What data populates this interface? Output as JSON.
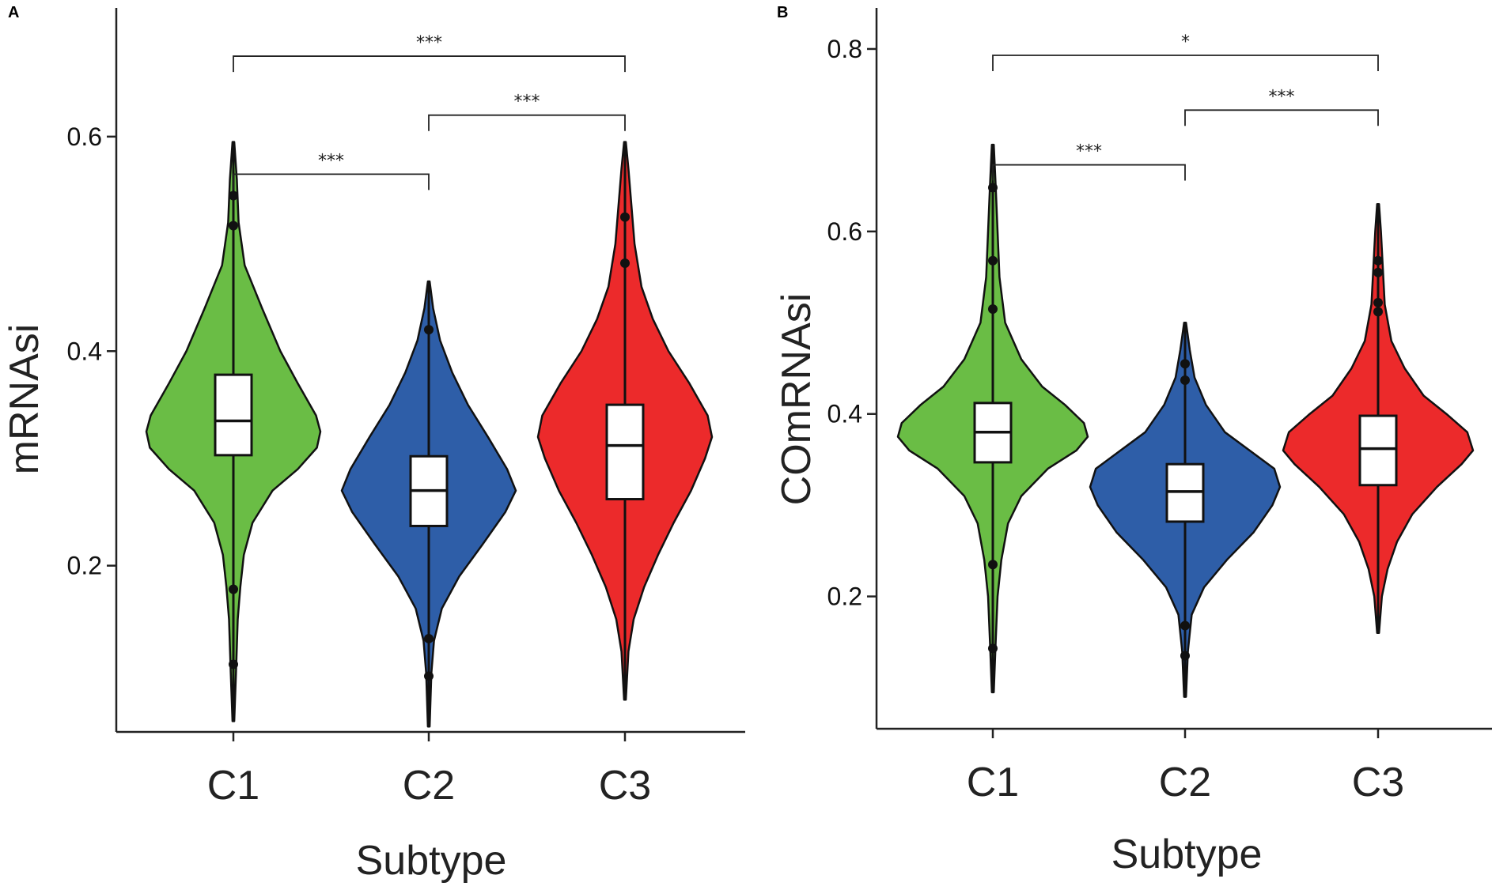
{
  "colors": {
    "C1": "#6abd45",
    "C2": "#2e5ea8",
    "C3": "#ec2a2b",
    "box_fill": "#ffffff",
    "outline": "#111111"
  },
  "chart_data": [
    {
      "panel": "A",
      "type": "violin",
      "xlabel": "Subtype",
      "ylabel": "mRNAsi",
      "categories": [
        "C1",
        "C2",
        "C3"
      ],
      "ylim": [
        0.045,
        0.72
      ],
      "yticks": [
        0.2,
        0.4,
        0.6
      ],
      "ytick_labels": [
        "0.2",
        "0.4",
        "0.6"
      ],
      "groups": [
        {
          "name": "C1",
          "min": 0.055,
          "max": 0.595,
          "q1": 0.303,
          "median": 0.335,
          "q3": 0.378,
          "whisker_low": 0.055,
          "whisker_high": 0.595,
          "outliers": [
            0.545,
            0.517,
            0.178,
            0.108
          ],
          "density": [
            [
              0.055,
              0.01
            ],
            [
              0.1,
              0.03
            ],
            [
              0.15,
              0.05
            ],
            [
              0.18,
              0.08
            ],
            [
              0.21,
              0.12
            ],
            [
              0.24,
              0.22
            ],
            [
              0.27,
              0.45
            ],
            [
              0.29,
              0.74
            ],
            [
              0.31,
              0.96
            ],
            [
              0.325,
              1.0
            ],
            [
              0.34,
              0.95
            ],
            [
              0.37,
              0.74
            ],
            [
              0.4,
              0.54
            ],
            [
              0.44,
              0.33
            ],
            [
              0.48,
              0.13
            ],
            [
              0.52,
              0.06
            ],
            [
              0.56,
              0.04
            ],
            [
              0.595,
              0.01
            ]
          ]
        },
        {
          "name": "C2",
          "min": 0.05,
          "max": 0.465,
          "q1": 0.237,
          "median": 0.27,
          "q3": 0.302,
          "whisker_low": 0.05,
          "whisker_high": 0.465,
          "outliers": [
            0.42,
            0.132,
            0.097
          ],
          "density": [
            [
              0.05,
              0.01
            ],
            [
              0.1,
              0.03
            ],
            [
              0.13,
              0.06
            ],
            [
              0.16,
              0.15
            ],
            [
              0.19,
              0.35
            ],
            [
              0.22,
              0.62
            ],
            [
              0.25,
              0.88
            ],
            [
              0.27,
              1.0
            ],
            [
              0.29,
              0.9
            ],
            [
              0.32,
              0.68
            ],
            [
              0.35,
              0.45
            ],
            [
              0.38,
              0.27
            ],
            [
              0.41,
              0.13
            ],
            [
              0.44,
              0.05
            ],
            [
              0.465,
              0.01
            ]
          ]
        },
        {
          "name": "C3",
          "min": 0.075,
          "max": 0.595,
          "q1": 0.262,
          "median": 0.312,
          "q3": 0.35,
          "whisker_low": 0.075,
          "whisker_high": 0.595,
          "outliers": [
            0.525,
            0.482
          ],
          "density": [
            [
              0.075,
              0.01
            ],
            [
              0.12,
              0.04
            ],
            [
              0.15,
              0.1
            ],
            [
              0.18,
              0.22
            ],
            [
              0.21,
              0.38
            ],
            [
              0.24,
              0.56
            ],
            [
              0.27,
              0.76
            ],
            [
              0.3,
              0.92
            ],
            [
              0.32,
              1.0
            ],
            [
              0.34,
              0.95
            ],
            [
              0.37,
              0.74
            ],
            [
              0.4,
              0.5
            ],
            [
              0.43,
              0.32
            ],
            [
              0.46,
              0.19
            ],
            [
              0.5,
              0.11
            ],
            [
              0.54,
              0.07
            ],
            [
              0.57,
              0.04
            ],
            [
              0.595,
              0.01
            ]
          ]
        }
      ],
      "comparisons": [
        {
          "from": "C1",
          "to": "C2",
          "y": 0.565,
          "label": "***"
        },
        {
          "from": "C2",
          "to": "C3",
          "y": 0.62,
          "label": "***"
        },
        {
          "from": "C1",
          "to": "C3",
          "y": 0.675,
          "label": "***"
        }
      ]
    },
    {
      "panel": "B",
      "type": "violin",
      "xlabel": "Subtype",
      "ylabel": "COmRNAsi",
      "categories": [
        "C1",
        "C2",
        "C3"
      ],
      "ylim": [
        0.055,
        0.845
      ],
      "yticks": [
        0.2,
        0.4,
        0.6,
        0.8
      ],
      "ytick_labels": [
        "0.2",
        "0.4",
        "0.6",
        "0.8"
      ],
      "groups": [
        {
          "name": "C1",
          "min": 0.095,
          "max": 0.695,
          "q1": 0.347,
          "median": 0.38,
          "q3": 0.412,
          "whisker_low": 0.095,
          "whisker_high": 0.695,
          "outliers": [
            0.648,
            0.568,
            0.515,
            0.235,
            0.143
          ],
          "density": [
            [
              0.095,
              0.01
            ],
            [
              0.15,
              0.03
            ],
            [
              0.2,
              0.05
            ],
            [
              0.24,
              0.09
            ],
            [
              0.28,
              0.16
            ],
            [
              0.31,
              0.3
            ],
            [
              0.34,
              0.58
            ],
            [
              0.36,
              0.88
            ],
            [
              0.375,
              1.0
            ],
            [
              0.39,
              0.96
            ],
            [
              0.41,
              0.76
            ],
            [
              0.43,
              0.52
            ],
            [
              0.46,
              0.3
            ],
            [
              0.5,
              0.13
            ],
            [
              0.55,
              0.07
            ],
            [
              0.6,
              0.05
            ],
            [
              0.65,
              0.03
            ],
            [
              0.695,
              0.01
            ]
          ]
        },
        {
          "name": "C2",
          "min": 0.09,
          "max": 0.5,
          "q1": 0.282,
          "median": 0.315,
          "q3": 0.345,
          "whisker_low": 0.09,
          "whisker_high": 0.5,
          "outliers": [
            0.455,
            0.437,
            0.168,
            0.135
          ],
          "density": [
            [
              0.09,
              0.01
            ],
            [
              0.14,
              0.03
            ],
            [
              0.18,
              0.07
            ],
            [
              0.21,
              0.2
            ],
            [
              0.24,
              0.44
            ],
            [
              0.27,
              0.72
            ],
            [
              0.3,
              0.92
            ],
            [
              0.32,
              1.0
            ],
            [
              0.34,
              0.94
            ],
            [
              0.36,
              0.68
            ],
            [
              0.38,
              0.42
            ],
            [
              0.41,
              0.22
            ],
            [
              0.44,
              0.1
            ],
            [
              0.47,
              0.05
            ],
            [
              0.5,
              0.01
            ]
          ]
        },
        {
          "name": "C3",
          "min": 0.16,
          "max": 0.63,
          "q1": 0.322,
          "median": 0.362,
          "q3": 0.398,
          "whisker_low": 0.16,
          "whisker_high": 0.63,
          "outliers": [
            0.568,
            0.555,
            0.522,
            0.512
          ],
          "density": [
            [
              0.16,
              0.01
            ],
            [
              0.2,
              0.04
            ],
            [
              0.23,
              0.1
            ],
            [
              0.26,
              0.2
            ],
            [
              0.29,
              0.36
            ],
            [
              0.32,
              0.62
            ],
            [
              0.345,
              0.88
            ],
            [
              0.36,
              1.0
            ],
            [
              0.38,
              0.94
            ],
            [
              0.4,
              0.72
            ],
            [
              0.42,
              0.48
            ],
            [
              0.45,
              0.28
            ],
            [
              0.48,
              0.14
            ],
            [
              0.52,
              0.07
            ],
            [
              0.56,
              0.05
            ],
            [
              0.6,
              0.03
            ],
            [
              0.63,
              0.01
            ]
          ]
        }
      ],
      "comparisons": [
        {
          "from": "C1",
          "to": "C2",
          "y": 0.673,
          "label": "***"
        },
        {
          "from": "C2",
          "to": "C3",
          "y": 0.733,
          "label": "***"
        },
        {
          "from": "C1",
          "to": "C3",
          "y": 0.793,
          "label": "*"
        }
      ]
    }
  ]
}
